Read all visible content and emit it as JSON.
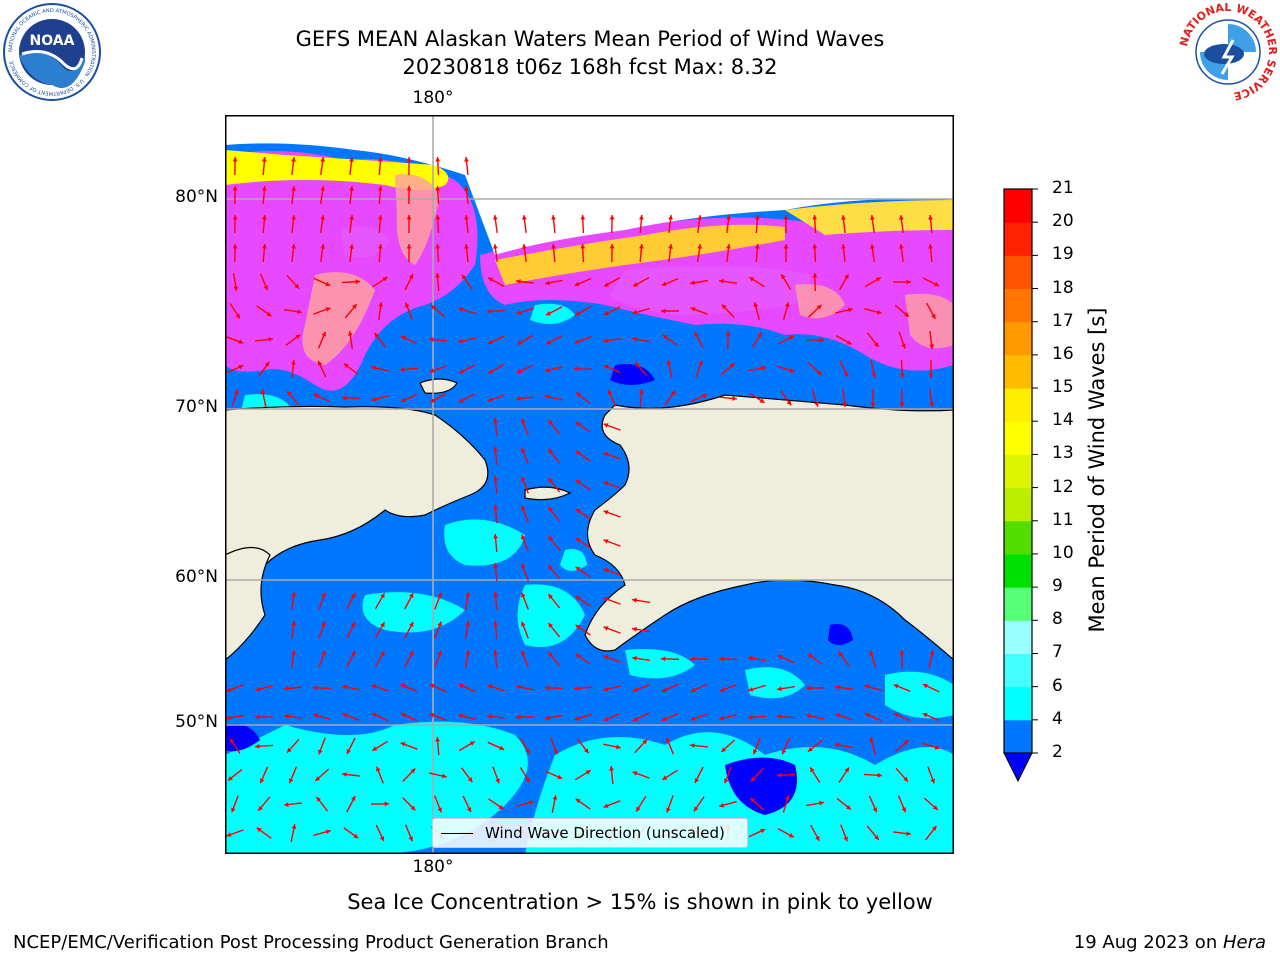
{
  "header": {
    "title_line1": "GEFS MEAN Alaskan Waters Mean Period of Wind Waves",
    "title_line2": "20230818 t06z 168h fcst   Max: 8.32"
  },
  "logos": {
    "noaa_text": "NOAA",
    "noaa_ring_text": "NATIONAL OCEANIC AND ATMOSPHERIC ADMINISTRATION · U.S. DEPARTMENT OF COMMERCE",
    "nws_ring_text": "NATIONAL WEATHER SERVICE"
  },
  "map": {
    "lon_label_top": "180°",
    "lon_label_bottom": "180°",
    "lat_labels": [
      "80°N",
      "70°N",
      "60°N",
      "50°N"
    ],
    "legend_label": "Wind Wave Direction (unscaled)",
    "arrow_color": "#ff0000",
    "land_color": "#efeddc",
    "ocean_colors": {
      "below_2": "#0000ff",
      "2_4": "#0077ff",
      "4_6": "#00ffff",
      "ice_low": "#ff44ff",
      "ice_mid": "#ffa0a0",
      "ice_high": "#ffff00"
    }
  },
  "colorbar": {
    "label": "Mean Period of Wind Waves [s]",
    "ticks": [
      "21",
      "20",
      "19",
      "18",
      "17",
      "16",
      "15",
      "14",
      "13",
      "12",
      "11",
      "10",
      "9",
      "8",
      "7",
      "6",
      "4",
      "2"
    ],
    "levels": [
      2,
      4,
      6,
      7,
      8,
      9,
      10,
      11,
      12,
      13,
      14,
      15,
      16,
      17,
      18,
      19,
      20,
      21
    ],
    "colors": [
      "#0077ff",
      "#00ffff",
      "#44ffff",
      "#99ffff",
      "#55ff77",
      "#00e000",
      "#55dd00",
      "#bbee00",
      "#ddf500",
      "#ffff00",
      "#ffee00",
      "#ffbb00",
      "#ff9900",
      "#ff7700",
      "#ff5500",
      "#ff2200",
      "#ff0000"
    ],
    "under_color": "#0000ff"
  },
  "notes": {
    "sea_ice": "Sea Ice Concentration > 15% is shown in pink to yellow",
    "footer_left": "NCEP/EMC/Verification Post Processing Product Generation Branch",
    "footer_date": "19 Aug 2023 on ",
    "footer_host": "Hera"
  }
}
